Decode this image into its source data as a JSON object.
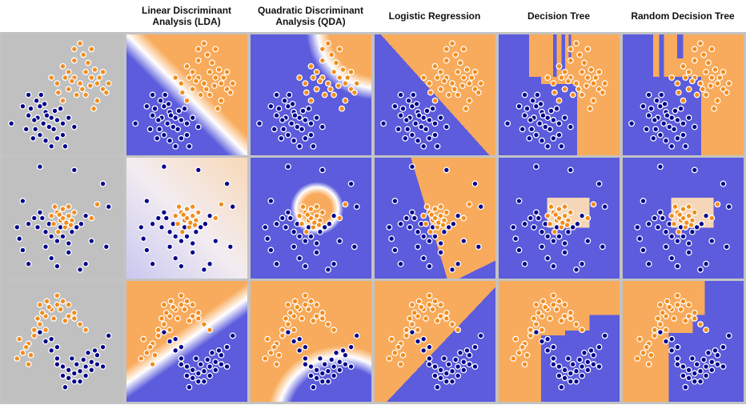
{
  "columns": [
    {
      "title": ""
    },
    {
      "title": "Linear Discriminant\nAnalysis (LDA)"
    },
    {
      "title": "Quadratic Discriminant\nAnalysis (QDA)"
    },
    {
      "title": "Logistic Regression"
    },
    {
      "title": "Decision Tree"
    },
    {
      "title": "Random Decision Tree"
    }
  ],
  "colors": {
    "class_a": "#00008b",
    "class_b": "#f28c1c",
    "region_a": "#5c5cdc",
    "region_b": "#f8ab5c",
    "input_bg": "#c0c0c0",
    "frame": "#c3c3c3"
  },
  "chart_data": [
    {
      "type": "scatter",
      "dataset": "1",
      "class_a": [
        [
          0.22,
          0.62
        ],
        [
          0.3,
          0.6
        ],
        [
          0.35,
          0.65
        ],
        [
          0.28,
          0.7
        ],
        [
          0.4,
          0.7
        ],
        [
          0.25,
          0.72
        ],
        [
          0.33,
          0.75
        ],
        [
          0.38,
          0.78
        ],
        [
          0.45,
          0.72
        ],
        [
          0.2,
          0.68
        ],
        [
          0.5,
          0.75
        ],
        [
          0.42,
          0.8
        ],
        [
          0.3,
          0.85
        ],
        [
          0.35,
          0.9
        ],
        [
          0.4,
          0.95
        ],
        [
          0.27,
          0.55
        ],
        [
          0.15,
          0.6
        ],
        [
          0.48,
          0.62
        ],
        [
          0.55,
          0.7
        ],
        [
          0.6,
          0.78
        ],
        [
          0.18,
          0.8
        ],
        [
          0.24,
          0.88
        ],
        [
          0.45,
          0.88
        ],
        [
          0.36,
          0.68
        ],
        [
          0.31,
          0.5
        ],
        [
          0.2,
          0.5
        ],
        [
          0.05,
          0.75
        ],
        [
          0.34,
          0.58
        ],
        [
          0.43,
          0.64
        ],
        [
          0.26,
          0.8
        ],
        [
          0.5,
          0.85
        ],
        [
          0.52,
          0.95
        ]
      ],
      "class_b": [
        [
          0.5,
          0.25
        ],
        [
          0.55,
          0.3
        ],
        [
          0.6,
          0.35
        ],
        [
          0.65,
          0.4
        ],
        [
          0.7,
          0.3
        ],
        [
          0.75,
          0.35
        ],
        [
          0.8,
          0.4
        ],
        [
          0.85,
          0.45
        ],
        [
          0.6,
          0.2
        ],
        [
          0.68,
          0.15
        ],
        [
          0.72,
          0.22
        ],
        [
          0.78,
          0.28
        ],
        [
          0.55,
          0.45
        ],
        [
          0.62,
          0.5
        ],
        [
          0.45,
          0.4
        ],
        [
          0.4,
          0.35
        ],
        [
          0.85,
          0.3
        ],
        [
          0.9,
          0.4
        ],
        [
          0.8,
          0.55
        ],
        [
          0.7,
          0.5
        ],
        [
          0.65,
          0.05
        ],
        [
          0.6,
          0.1
        ],
        [
          0.75,
          0.1
        ],
        [
          0.5,
          0.55
        ],
        [
          0.58,
          0.38
        ],
        [
          0.67,
          0.45
        ],
        [
          0.74,
          0.42
        ],
        [
          0.82,
          0.35
        ],
        [
          0.88,
          0.48
        ],
        [
          0.52,
          0.35
        ],
        [
          0.46,
          0.48
        ],
        [
          0.77,
          0.62
        ]
      ]
    },
    {
      "type": "scatter",
      "dataset": "2",
      "class_a": [
        [
          0.3,
          0.45
        ],
        [
          0.25,
          0.5
        ],
        [
          0.28,
          0.58
        ],
        [
          0.35,
          0.62
        ],
        [
          0.4,
          0.66
        ],
        [
          0.5,
          0.66
        ],
        [
          0.58,
          0.62
        ],
        [
          0.62,
          0.58
        ],
        [
          0.66,
          0.55
        ],
        [
          0.7,
          0.48
        ],
        [
          0.2,
          0.55
        ],
        [
          0.45,
          0.7
        ],
        [
          0.32,
          0.5
        ],
        [
          0.55,
          0.72
        ],
        [
          0.48,
          0.58
        ],
        [
          0.38,
          0.55
        ],
        [
          0.15,
          0.35
        ],
        [
          0.1,
          0.58
        ],
        [
          0.12,
          0.68
        ],
        [
          0.3,
          0.05
        ],
        [
          0.6,
          0.08
        ],
        [
          0.85,
          0.2
        ],
        [
          0.9,
          0.4
        ],
        [
          0.88,
          0.75
        ],
        [
          0.7,
          0.9
        ],
        [
          0.4,
          0.85
        ],
        [
          0.2,
          0.9
        ],
        [
          0.55,
          0.8
        ],
        [
          0.75,
          0.7
        ],
        [
          0.15,
          0.78
        ],
        [
          0.45,
          0.92
        ],
        [
          0.65,
          0.95
        ],
        [
          0.35,
          0.75
        ]
      ],
      "class_b": [
        [
          0.45,
          0.45
        ],
        [
          0.5,
          0.42
        ],
        [
          0.55,
          0.48
        ],
        [
          0.48,
          0.52
        ],
        [
          0.52,
          0.58
        ],
        [
          0.58,
          0.52
        ],
        [
          0.42,
          0.55
        ],
        [
          0.46,
          0.62
        ],
        [
          0.55,
          0.4
        ],
        [
          0.4,
          0.48
        ],
        [
          0.6,
          0.45
        ],
        [
          0.5,
          0.5
        ],
        [
          0.43,
          0.4
        ],
        [
          0.57,
          0.56
        ],
        [
          0.8,
          0.38
        ],
        [
          0.75,
          0.5
        ],
        [
          0.47,
          0.47
        ],
        [
          0.53,
          0.54
        ]
      ]
    },
    {
      "type": "scatter",
      "dataset": "3",
      "class_a": [
        [
          0.3,
          0.42
        ],
        [
          0.35,
          0.5
        ],
        [
          0.4,
          0.58
        ],
        [
          0.45,
          0.65
        ],
        [
          0.5,
          0.72
        ],
        [
          0.55,
          0.75
        ],
        [
          0.6,
          0.78
        ],
        [
          0.65,
          0.76
        ],
        [
          0.7,
          0.72
        ],
        [
          0.75,
          0.68
        ],
        [
          0.8,
          0.62
        ],
        [
          0.85,
          0.55
        ],
        [
          0.5,
          0.8
        ],
        [
          0.6,
          0.85
        ],
        [
          0.7,
          0.8
        ],
        [
          0.75,
          0.75
        ],
        [
          0.45,
          0.7
        ],
        [
          0.8,
          0.7
        ],
        [
          0.65,
          0.85
        ],
        [
          0.55,
          0.82
        ],
        [
          0.4,
          0.48
        ],
        [
          0.62,
          0.7
        ],
        [
          0.72,
          0.6
        ],
        [
          0.78,
          0.58
        ],
        [
          0.68,
          0.66
        ],
        [
          0.9,
          0.45
        ],
        [
          0.58,
          0.65
        ],
        [
          0.45,
          0.55
        ],
        [
          0.85,
          0.72
        ],
        [
          0.52,
          0.9
        ]
      ],
      "class_b": [
        [
          0.15,
          0.6
        ],
        [
          0.2,
          0.52
        ],
        [
          0.25,
          0.45
        ],
        [
          0.3,
          0.35
        ],
        [
          0.35,
          0.28
        ],
        [
          0.4,
          0.22
        ],
        [
          0.45,
          0.18
        ],
        [
          0.5,
          0.15
        ],
        [
          0.55,
          0.18
        ],
        [
          0.6,
          0.25
        ],
        [
          0.65,
          0.35
        ],
        [
          0.28,
          0.3
        ],
        [
          0.38,
          0.2
        ],
        [
          0.48,
          0.22
        ],
        [
          0.55,
          0.28
        ],
        [
          0.42,
          0.3
        ],
        [
          0.32,
          0.25
        ],
        [
          0.25,
          0.4
        ],
        [
          0.18,
          0.55
        ],
        [
          0.1,
          0.65
        ],
        [
          0.22,
          0.62
        ],
        [
          0.35,
          0.4
        ],
        [
          0.52,
          0.32
        ],
        [
          0.6,
          0.3
        ],
        [
          0.45,
          0.1
        ],
        [
          0.3,
          0.18
        ],
        [
          0.7,
          0.4
        ],
        [
          0.12,
          0.48
        ],
        [
          0.2,
          0.7
        ],
        [
          0.36,
          0.15
        ]
      ]
    }
  ]
}
